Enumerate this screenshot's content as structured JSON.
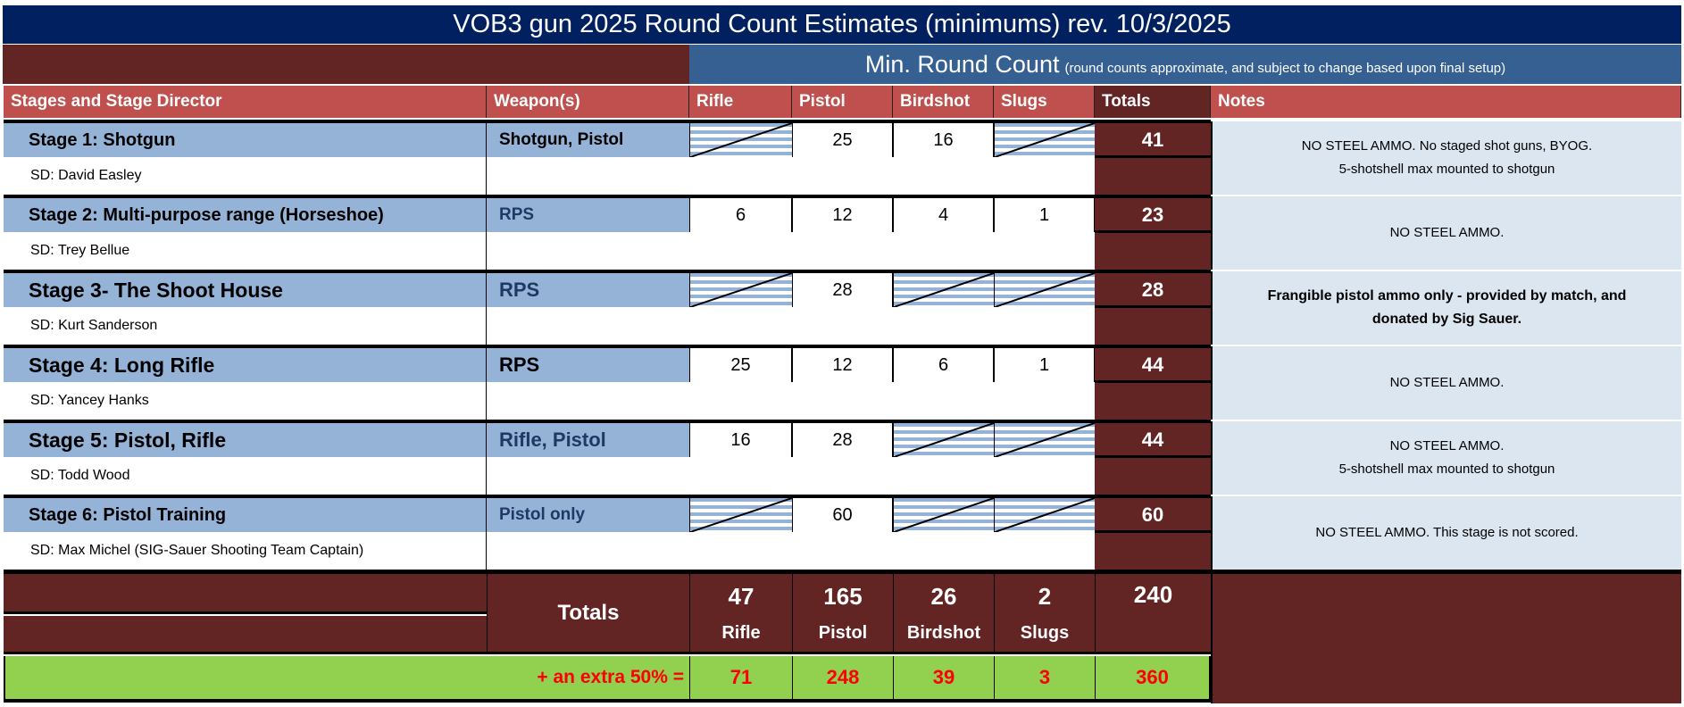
{
  "title": "VOB3 gun 2025 Round Count Estimates (minimums)  rev. 10/3/2025",
  "min_round_count": {
    "label": "Min. Round Count",
    "note": "(round counts approximate, and subject to change based upon final setup)"
  },
  "headers": [
    "Stages and Stage Director",
    "Weapon(s)",
    "Rifle",
    "Pistol",
    "Birdshot",
    "Slugs",
    "Totals",
    "Notes"
  ],
  "stages": [
    {
      "name": "Stage 1: Shotgun",
      "director": "SD: David Easley",
      "weapons": "Shotgun, Pistol",
      "rifle": null,
      "pistol": "25",
      "birdshot": "16",
      "slugs": null,
      "total": "41",
      "notes": [
        "NO STEEL AMMO.  No staged shot guns, BYOG.",
        "5-shotshell max mounted to shotgun"
      ],
      "notes_bold": false,
      "large": false,
      "weapon_color": "#000000"
    },
    {
      "name": "Stage 2: Multi-purpose range (Horseshoe)",
      "director": "SD: Trey Bellue",
      "weapons": "RPS",
      "rifle": "6",
      "pistol": "12",
      "birdshot": "4",
      "slugs": "1",
      "total": "23",
      "notes": [
        "NO STEEL AMMO."
      ],
      "notes_bold": false,
      "large": false,
      "weapon_color": "#1f3864"
    },
    {
      "name": "Stage 3- The Shoot House",
      "director": "SD: Kurt Sanderson",
      "weapons": "RPS",
      "rifle": null,
      "pistol": "28",
      "birdshot": null,
      "slugs": null,
      "total": "28",
      "notes": [
        "Frangible pistol ammo only - provided by match, and",
        "donated by Sig Sauer."
      ],
      "notes_bold": true,
      "large": true,
      "weapon_color": "#1f3864"
    },
    {
      "name": "Stage 4: Long Rifle",
      "director": "SD: Yancey Hanks",
      "weapons": "RPS",
      "rifle": "25",
      "pistol": "12",
      "birdshot": "6",
      "slugs": "1",
      "total": "44",
      "notes": [
        "NO STEEL AMMO."
      ],
      "notes_bold": false,
      "large": true,
      "weapon_color": "#000000"
    },
    {
      "name": "Stage 5: Pistol, Rifle",
      "director": "SD: Todd  Wood",
      "weapons": "Rifle, Pistol",
      "rifle": "16",
      "pistol": "28",
      "birdshot": null,
      "slugs": null,
      "total": "44",
      "notes": [
        "NO STEEL AMMO.",
        "5-shotshell max mounted to shotgun"
      ],
      "notes_bold": false,
      "large": true,
      "weapon_color": "#1f3864"
    },
    {
      "name": "Stage 6: Pistol Training",
      "director": "SD: Max Michel (SIG-Sauer Shooting Team Captain)",
      "weapons": "Pistol only",
      "rifle": null,
      "pistol": "60",
      "birdshot": null,
      "slugs": null,
      "total": "60",
      "notes": [
        "NO STEEL AMMO.  This stage is not scored."
      ],
      "notes_bold": false,
      "large": false,
      "weapon_color": "#1f3864"
    }
  ],
  "totals": {
    "label": "Totals",
    "values": [
      {
        "value": "47",
        "label": "Rifle"
      },
      {
        "value": "165",
        "label": "Pistol"
      },
      {
        "value": "26",
        "label": "Birdshot"
      },
      {
        "value": "2",
        "label": "Slugs"
      }
    ],
    "grand_total": "240"
  },
  "extra": {
    "label": "+ an extra 50% =",
    "values": [
      "71",
      "248",
      "39",
      "3"
    ],
    "grand_total": "360"
  },
  "colors": {
    "title_bg": "#002060",
    "maroon": "#632523",
    "header_red": "#c0504d",
    "stage_blue": "#95b3d7",
    "notes_bg": "#dce6f1",
    "green": "#92d050",
    "red_text": "#ff0000"
  }
}
